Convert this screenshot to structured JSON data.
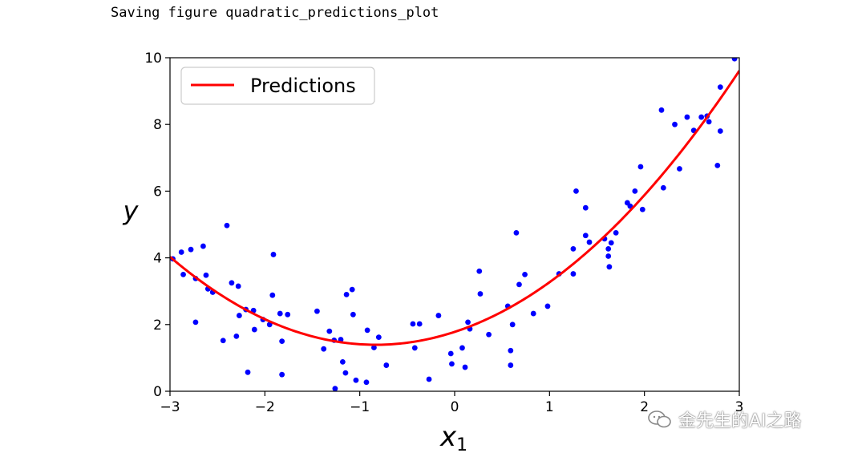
{
  "console": {
    "text": "Saving figure quadratic_predictions_plot"
  },
  "watermark": {
    "text": "金先生的AI之路",
    "icon": "wechat-icon"
  },
  "chart_data": {
    "type": "scatter",
    "xlabel": "x",
    "xlabel_subscript": "1",
    "ylabel": "y",
    "xlim": [
      -3,
      3
    ],
    "ylim": [
      0,
      10
    ],
    "xticks": [
      -3,
      -2,
      -1,
      0,
      1,
      2,
      3
    ],
    "xtick_labels": [
      "−3",
      "−2",
      "−1",
      "0",
      "1",
      "2",
      "3"
    ],
    "yticks": [
      0,
      2,
      4,
      6,
      8,
      10
    ],
    "ytick_labels": [
      "0",
      "2",
      "4",
      "6",
      "8",
      "10"
    ],
    "grid": false,
    "legend_position": "top-left",
    "series": [
      {
        "name": "",
        "kind": "scatter",
        "color": "#0000ff",
        "points": [
          [
            -2.97,
            3.97
          ],
          [
            -2.88,
            4.17
          ],
          [
            -2.78,
            4.25
          ],
          [
            -2.86,
            3.5
          ],
          [
            -2.73,
            3.38
          ],
          [
            -2.65,
            4.35
          ],
          [
            -2.62,
            3.48
          ],
          [
            -2.6,
            3.07
          ],
          [
            -2.55,
            2.97
          ],
          [
            -2.73,
            2.07
          ],
          [
            -2.44,
            1.52
          ],
          [
            -2.4,
            4.97
          ],
          [
            -2.35,
            3.25
          ],
          [
            -2.28,
            3.15
          ],
          [
            -2.27,
            2.27
          ],
          [
            -2.3,
            1.65
          ],
          [
            -2.2,
            2.45
          ],
          [
            -2.12,
            2.42
          ],
          [
            -2.11,
            1.85
          ],
          [
            -2.02,
            2.15
          ],
          [
            -1.95,
            2.0
          ],
          [
            -1.92,
            2.88
          ],
          [
            -1.91,
            4.1
          ],
          [
            -1.84,
            2.33
          ],
          [
            -1.82,
            1.5
          ],
          [
            -1.82,
            0.5
          ],
          [
            -1.76,
            2.3
          ],
          [
            -2.18,
            0.57
          ],
          [
            -1.45,
            2.4
          ],
          [
            -1.38,
            1.27
          ],
          [
            -1.32,
            1.8
          ],
          [
            -1.27,
            1.53
          ],
          [
            -1.2,
            1.55
          ],
          [
            -1.18,
            0.88
          ],
          [
            -1.15,
            0.55
          ],
          [
            -1.14,
            2.9
          ],
          [
            -1.26,
            0.08
          ],
          [
            -1.08,
            3.05
          ],
          [
            -1.07,
            2.3
          ],
          [
            -1.04,
            0.33
          ],
          [
            -0.93,
            0.27
          ],
          [
            -0.92,
            1.83
          ],
          [
            -0.85,
            1.31
          ],
          [
            -0.8,
            1.62
          ],
          [
            -0.72,
            0.78
          ],
          [
            -0.44,
            2.02
          ],
          [
            -0.42,
            1.3
          ],
          [
            -0.37,
            2.02
          ],
          [
            -0.27,
            0.36
          ],
          [
            -0.17,
            2.27
          ],
          [
            -0.04,
            1.13
          ],
          [
            -0.03,
            0.82
          ],
          [
            0.08,
            1.3
          ],
          [
            0.11,
            0.72
          ],
          [
            0.14,
            2.07
          ],
          [
            0.16,
            1.87
          ],
          [
            0.26,
            3.6
          ],
          [
            0.27,
            2.92
          ],
          [
            0.36,
            1.7
          ],
          [
            0.56,
            2.55
          ],
          [
            0.59,
            1.22
          ],
          [
            0.59,
            0.78
          ],
          [
            0.61,
            2.0
          ],
          [
            0.65,
            4.75
          ],
          [
            0.68,
            3.2
          ],
          [
            0.74,
            3.5
          ],
          [
            0.83,
            2.33
          ],
          [
            0.98,
            2.55
          ],
          [
            1.1,
            3.52
          ],
          [
            1.25,
            4.27
          ],
          [
            1.25,
            3.52
          ],
          [
            1.28,
            6.0
          ],
          [
            1.38,
            5.5
          ],
          [
            1.38,
            4.67
          ],
          [
            1.42,
            4.47
          ],
          [
            1.58,
            4.57
          ],
          [
            1.62,
            4.27
          ],
          [
            1.62,
            4.05
          ],
          [
            1.63,
            3.73
          ],
          [
            1.65,
            4.45
          ],
          [
            1.7,
            4.75
          ],
          [
            1.82,
            5.65
          ],
          [
            1.85,
            5.55
          ],
          [
            1.9,
            6.0
          ],
          [
            1.96,
            6.73
          ],
          [
            1.98,
            5.45
          ],
          [
            2.18,
            8.43
          ],
          [
            2.2,
            6.1
          ],
          [
            2.32,
            8.0
          ],
          [
            2.37,
            6.67
          ],
          [
            2.45,
            8.22
          ],
          [
            2.52,
            7.82
          ],
          [
            2.6,
            8.22
          ],
          [
            2.66,
            8.25
          ],
          [
            2.68,
            8.08
          ],
          [
            2.77,
            6.77
          ],
          [
            2.8,
            9.12
          ],
          [
            2.8,
            7.8
          ],
          [
            2.95,
            9.97
          ]
        ]
      },
      {
        "name": "Predictions",
        "kind": "line",
        "color": "#ff0000",
        "equation": "y = 0.56*x^2 + 0.93*x + 1.78"
      }
    ]
  }
}
